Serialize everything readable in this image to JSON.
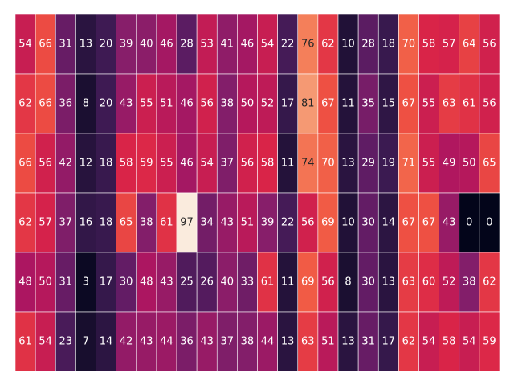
{
  "chart_data": {
    "type": "heatmap",
    "title": "",
    "xlabel": "",
    "ylabel": "",
    "n_rows": 6,
    "n_cols": 24,
    "value_range": [
      0,
      97
    ],
    "colormap": "rocket",
    "cell_border_color": "#ffffff",
    "annotations": true,
    "colorbar": false,
    "values": [
      [
        54,
        66,
        31,
        13,
        20,
        39,
        40,
        46,
        28,
        53,
        41,
        46,
        54,
        22,
        76,
        62,
        10,
        28,
        18,
        70,
        58,
        57,
        64,
        56
      ],
      [
        62,
        66,
        36,
        8,
        20,
        43,
        55,
        51,
        46,
        56,
        38,
        50,
        52,
        17,
        81,
        67,
        11,
        35,
        15,
        67,
        55,
        63,
        61,
        56
      ],
      [
        66,
        56,
        42,
        12,
        18,
        58,
        59,
        55,
        46,
        54,
        37,
        56,
        58,
        11,
        74,
        70,
        13,
        29,
        19,
        71,
        55,
        49,
        50,
        65
      ],
      [
        62,
        57,
        37,
        16,
        18,
        65,
        38,
        61,
        97,
        34,
        43,
        51,
        39,
        22,
        56,
        69,
        10,
        30,
        14,
        67,
        67,
        43,
        0,
        0
      ],
      [
        48,
        50,
        31,
        3,
        17,
        30,
        48,
        43,
        25,
        26,
        40,
        33,
        61,
        11,
        69,
        56,
        8,
        30,
        13,
        63,
        60,
        52,
        38,
        62
      ],
      [
        61,
        54,
        23,
        7,
        14,
        42,
        43,
        44,
        36,
        43,
        37,
        38,
        44,
        13,
        63,
        51,
        13,
        31,
        17,
        62,
        54,
        58,
        54,
        59
      ]
    ]
  }
}
